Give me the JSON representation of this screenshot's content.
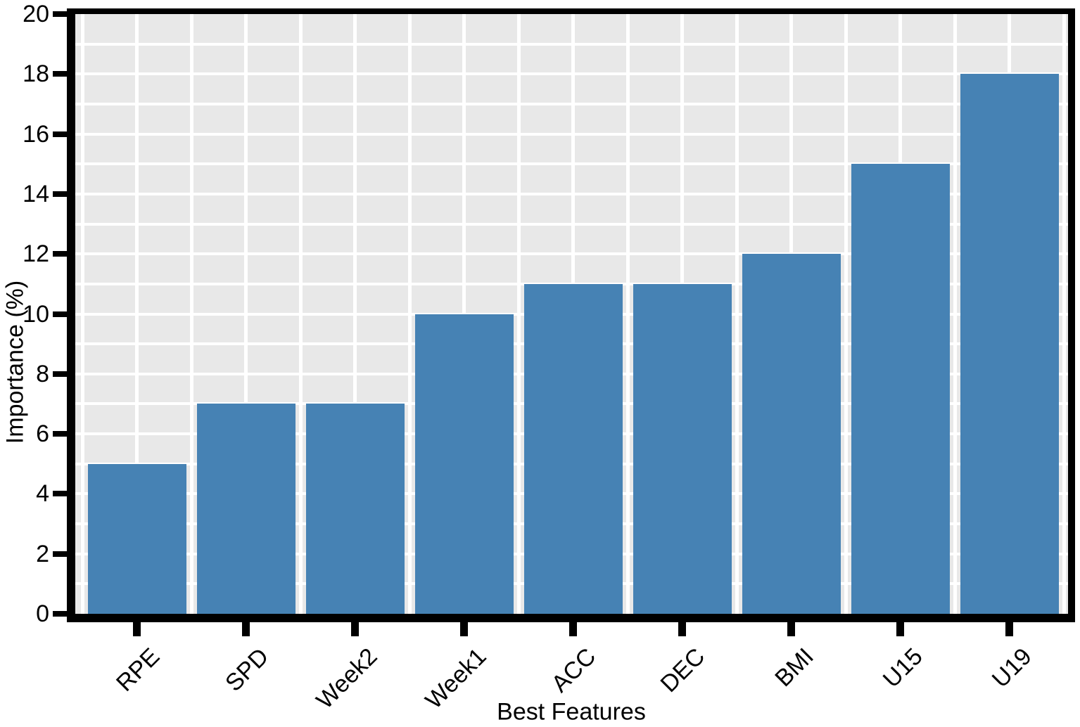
{
  "chart_data": {
    "type": "bar",
    "title": "",
    "xlabel": "Best Features",
    "ylabel": "Importance (%)",
    "categories": [
      "RPE",
      "SPD",
      "Week2",
      "Week1",
      "ACC",
      "DEC",
      "BMI",
      "U15",
      "U19"
    ],
    "values": [
      5,
      7,
      7,
      10,
      11,
      11,
      12,
      15,
      18
    ],
    "ylim": [
      0,
      20
    ],
    "yticks": [
      0,
      2,
      4,
      6,
      8,
      10,
      12,
      14,
      16,
      18,
      20
    ],
    "grid": "horizontal and vertical white gridlines on gray panel, grid behind bars",
    "legend": "none",
    "x_tick_label_rotation_deg": -45,
    "colors": {
      "bar_fill": "#4682B4",
      "plot_background": "#E8E8E8",
      "gridline": "#FFFFFF",
      "axis_and_text": "#000000",
      "figure_background": "#FFFFFF"
    }
  }
}
